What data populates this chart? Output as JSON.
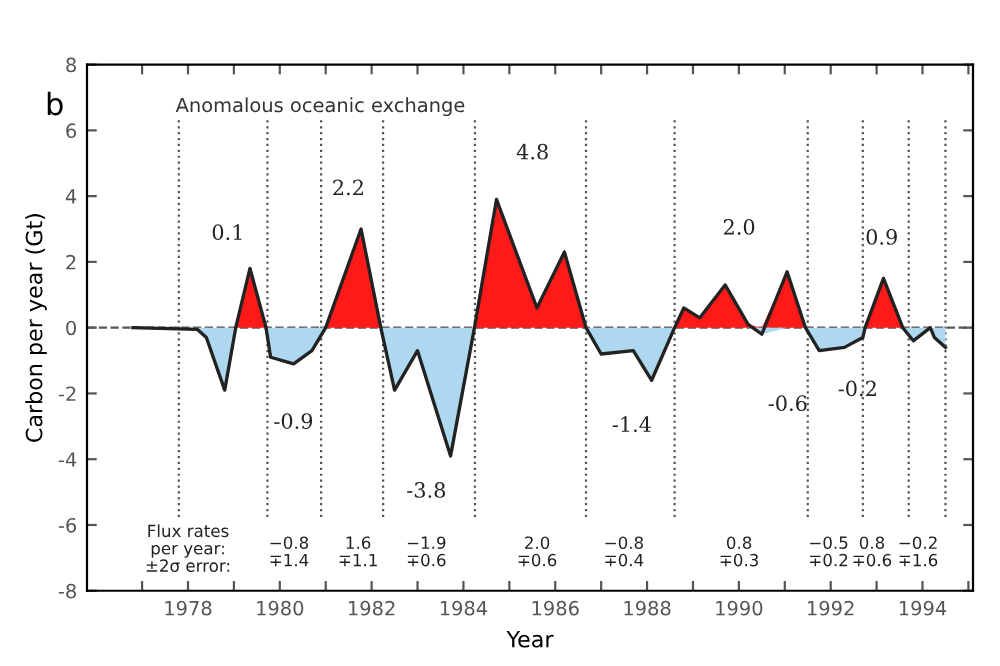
{
  "chart_data": {
    "type": "area",
    "title": "b",
    "subtitle": "Anomalous oceanic exchange",
    "xlabel": "Year",
    "ylabel": "Carbon per year (Gt)",
    "x": [
      1976.8,
      1978.2,
      1978.4,
      1978.8,
      1979.04,
      1979.35,
      1979.7,
      1979.8,
      1980.3,
      1980.7,
      1981.0,
      1981.77,
      1982.2,
      1982.5,
      1983.0,
      1983.72,
      1984.24,
      1984.72,
      1985.6,
      1986.2,
      1986.67,
      1987.0,
      1987.7,
      1988.1,
      1988.6,
      1988.8,
      1989.15,
      1989.7,
      1990.2,
      1990.5,
      1991.05,
      1991.45,
      1991.75,
      1992.3,
      1992.7,
      1992.75,
      1993.15,
      1993.57,
      1993.8,
      1994.17,
      1994.26,
      1994.5
    ],
    "series": [
      {
        "color": "#ff1a1a",
        "values": [
          0,
          0,
          0,
          0,
          0,
          1.8,
          0,
          0,
          0,
          0,
          0,
          3.0,
          0,
          0,
          0,
          0,
          0,
          3.9,
          0.6,
          2.3,
          0,
          0,
          0,
          0,
          0,
          0.6,
          0.3,
          1.3,
          0.1,
          0,
          1.7,
          0,
          0,
          0,
          0,
          0,
          1.5,
          0,
          0,
          0,
          0,
          0
        ]
      },
      {
        "color": "#add8f0",
        "values": [
          0,
          -0.05,
          -0.3,
          -1.9,
          0,
          0,
          0,
          -0.9,
          -1.1,
          -0.7,
          0,
          0,
          0,
          -1.9,
          -0.7,
          -3.9,
          0,
          0,
          0,
          0,
          0,
          -0.8,
          -0.7,
          -1.6,
          0,
          0,
          0,
          0,
          0,
          -0.2,
          0,
          0,
          -0.7,
          -0.6,
          -0.3,
          0,
          0,
          0,
          -0.4,
          0,
          -0.3,
          -0.6
        ]
      },
      {
        "type": "line",
        "color": "#222222",
        "values": [
          0,
          -0.05,
          -0.3,
          -1.9,
          0,
          1.8,
          0,
          -0.9,
          -1.1,
          -0.7,
          0,
          3.0,
          0,
          -1.9,
          -0.7,
          -3.9,
          0,
          3.9,
          0.6,
          2.3,
          0,
          -0.8,
          -0.7,
          -1.6,
          0,
          0.6,
          0.3,
          1.3,
          0.1,
          -0.2,
          1.7,
          0,
          -0.7,
          -0.6,
          -0.3,
          0,
          1.5,
          0,
          -0.4,
          0,
          -0.3,
          -0.6
        ]
      }
    ],
    "xlim": [
      1975.8,
      1995.1
    ],
    "xticks": [
      {
        "value": 1977,
        "label": null
      },
      {
        "value": 1978,
        "label": "1978"
      },
      {
        "value": 1979,
        "label": null
      },
      {
        "value": 1980,
        "label": "1980"
      },
      {
        "value": 1981,
        "label": null
      },
      {
        "value": 1982,
        "label": "1982"
      },
      {
        "value": 1983,
        "label": null
      },
      {
        "value": 1984,
        "label": "1984"
      },
      {
        "value": 1985,
        "label": null
      },
      {
        "value": 1986,
        "label": "1986"
      },
      {
        "value": 1987,
        "label": null
      },
      {
        "value": 1988,
        "label": "1988"
      },
      {
        "value": 1989,
        "label": null
      },
      {
        "value": 1990,
        "label": "1990"
      },
      {
        "value": 1991,
        "label": null
      },
      {
        "value": 1992,
        "label": "1992"
      },
      {
        "value": 1993,
        "label": null
      },
      {
        "value": 1994,
        "label": "1994"
      },
      {
        "value": 1995,
        "label": null
      }
    ],
    "ylim": [
      -8,
      8
    ],
    "yticks": [
      -8,
      -6,
      -4,
      -2,
      0,
      2,
      4,
      6,
      8
    ],
    "grid": false,
    "ref_lines": [
      {
        "axis": "y",
        "value": 0,
        "line_style": "dashed",
        "color": "#555555"
      },
      {
        "axis": "x",
        "value": 1977.8,
        "line_style": "dotted",
        "color": "#555555"
      },
      {
        "axis": "x",
        "value": 1979.73,
        "line_style": "dotted",
        "color": "#555555"
      },
      {
        "axis": "x",
        "value": 1980.9,
        "line_style": "dotted",
        "color": "#555555"
      },
      {
        "axis": "x",
        "value": 1982.25,
        "line_style": "dotted",
        "color": "#555555"
      },
      {
        "axis": "x",
        "value": 1984.25,
        "line_style": "dotted",
        "color": "#555555"
      },
      {
        "axis": "x",
        "value": 1986.67,
        "line_style": "dotted",
        "color": "#555555"
      },
      {
        "axis": "x",
        "value": 1988.6,
        "line_style": "dotted",
        "color": "#555555"
      },
      {
        "axis": "x",
        "value": 1991.5,
        "line_style": "dotted",
        "color": "#555555"
      },
      {
        "axis": "x",
        "value": 1992.7,
        "line_style": "dotted",
        "color": "#555555"
      },
      {
        "axis": "x",
        "value": 1993.7,
        "line_style": "dotted",
        "color": "#555555"
      },
      {
        "axis": "x",
        "value": 1994.5,
        "line_style": "dotted",
        "color": "#555555"
      }
    ],
    "annotations": [
      "0.1",
      "2.2",
      "4.8",
      "2.0",
      "0.9",
      "-0.9",
      "-3.8",
      "-1.4",
      "-0.6",
      "-0.2",
      "Flux rates\nper year:\n±2σ error:",
      "−0.8\n∓1.4",
      "1.6\n∓1.1",
      "−1.9\n∓0.6",
      "2.0\n∓0.6",
      "−0.8\n∓0.4",
      "0.8\n∓0.3",
      "−0.5\n∓0.2",
      "0.8\n∓0.6",
      "−0.2\n∓1.6"
    ]
  }
}
